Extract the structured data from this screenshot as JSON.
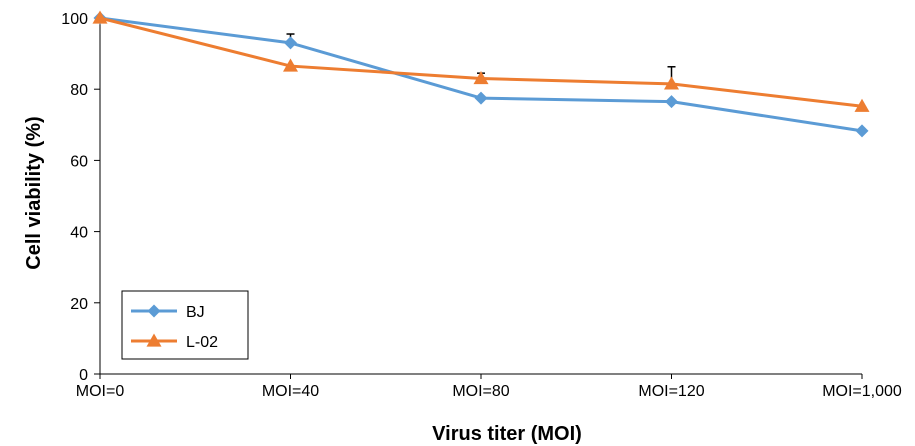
{
  "chart_data": {
    "type": "line",
    "title": "",
    "xlabel": "Virus titer (MOI)",
    "ylabel": "Cell viability (%)",
    "categories": [
      "MOI=0",
      "MOI=40",
      "MOI=80",
      "MOI=120",
      "MOI=1,000"
    ],
    "ylim": [
      0,
      100
    ],
    "yticks": [
      0,
      20,
      40,
      60,
      80,
      100
    ],
    "grid": false,
    "legend": "bottom-left",
    "series": [
      {
        "name": "BJ",
        "values": [
          100,
          93,
          77.5,
          76.5,
          68.3
        ],
        "errors": [
          0,
          2.5,
          0,
          0,
          0
        ],
        "color": "#5B9BD5",
        "marker": "diamond"
      },
      {
        "name": "L-02",
        "values": [
          100,
          86.5,
          83,
          81.5,
          75.2
        ],
        "errors": [
          0,
          0,
          1.5,
          4.8,
          0
        ],
        "color": "#ED7D31",
        "marker": "triangle"
      }
    ]
  }
}
